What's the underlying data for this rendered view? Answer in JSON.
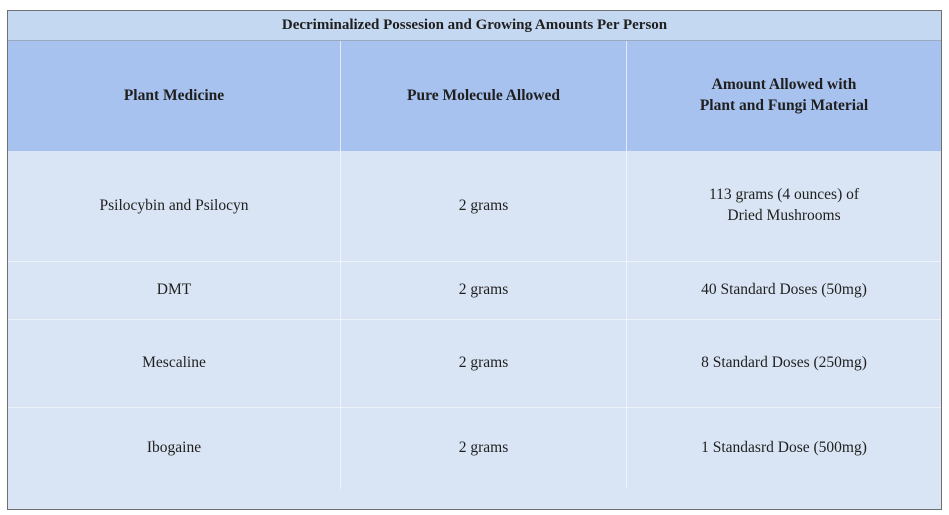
{
  "table": {
    "title": "Decriminalized Possesion and Growing Amounts Per Person",
    "headers": {
      "col1": "Plant Medicine",
      "col2": "Pure Molecule Allowed",
      "col3_line1": "Amount Allowed with",
      "col3_line2": "Plant and Fungi Material"
    },
    "rows": [
      {
        "medicine": "Psilocybin and Psilocyn",
        "pure": "2 grams",
        "plant_line1": "113 grams (4 ounces) of",
        "plant_line2": "Dried Mushrooms"
      },
      {
        "medicine": "DMT",
        "pure": "2 grams",
        "plant_line1": "40 Standard Doses (50mg)"
      },
      {
        "medicine": "Mescaline",
        "pure": "2 grams",
        "plant_line1": "8 Standard Doses (250mg)"
      },
      {
        "medicine": "Ibogaine",
        "pure": "2 grams",
        "plant_line1": "1 Standasrd Dose (500mg)"
      }
    ]
  },
  "colors": {
    "title_bg": "#c5d8f1",
    "header_bg": "#a7c2ee",
    "body_bg": "#d9e5f4"
  }
}
